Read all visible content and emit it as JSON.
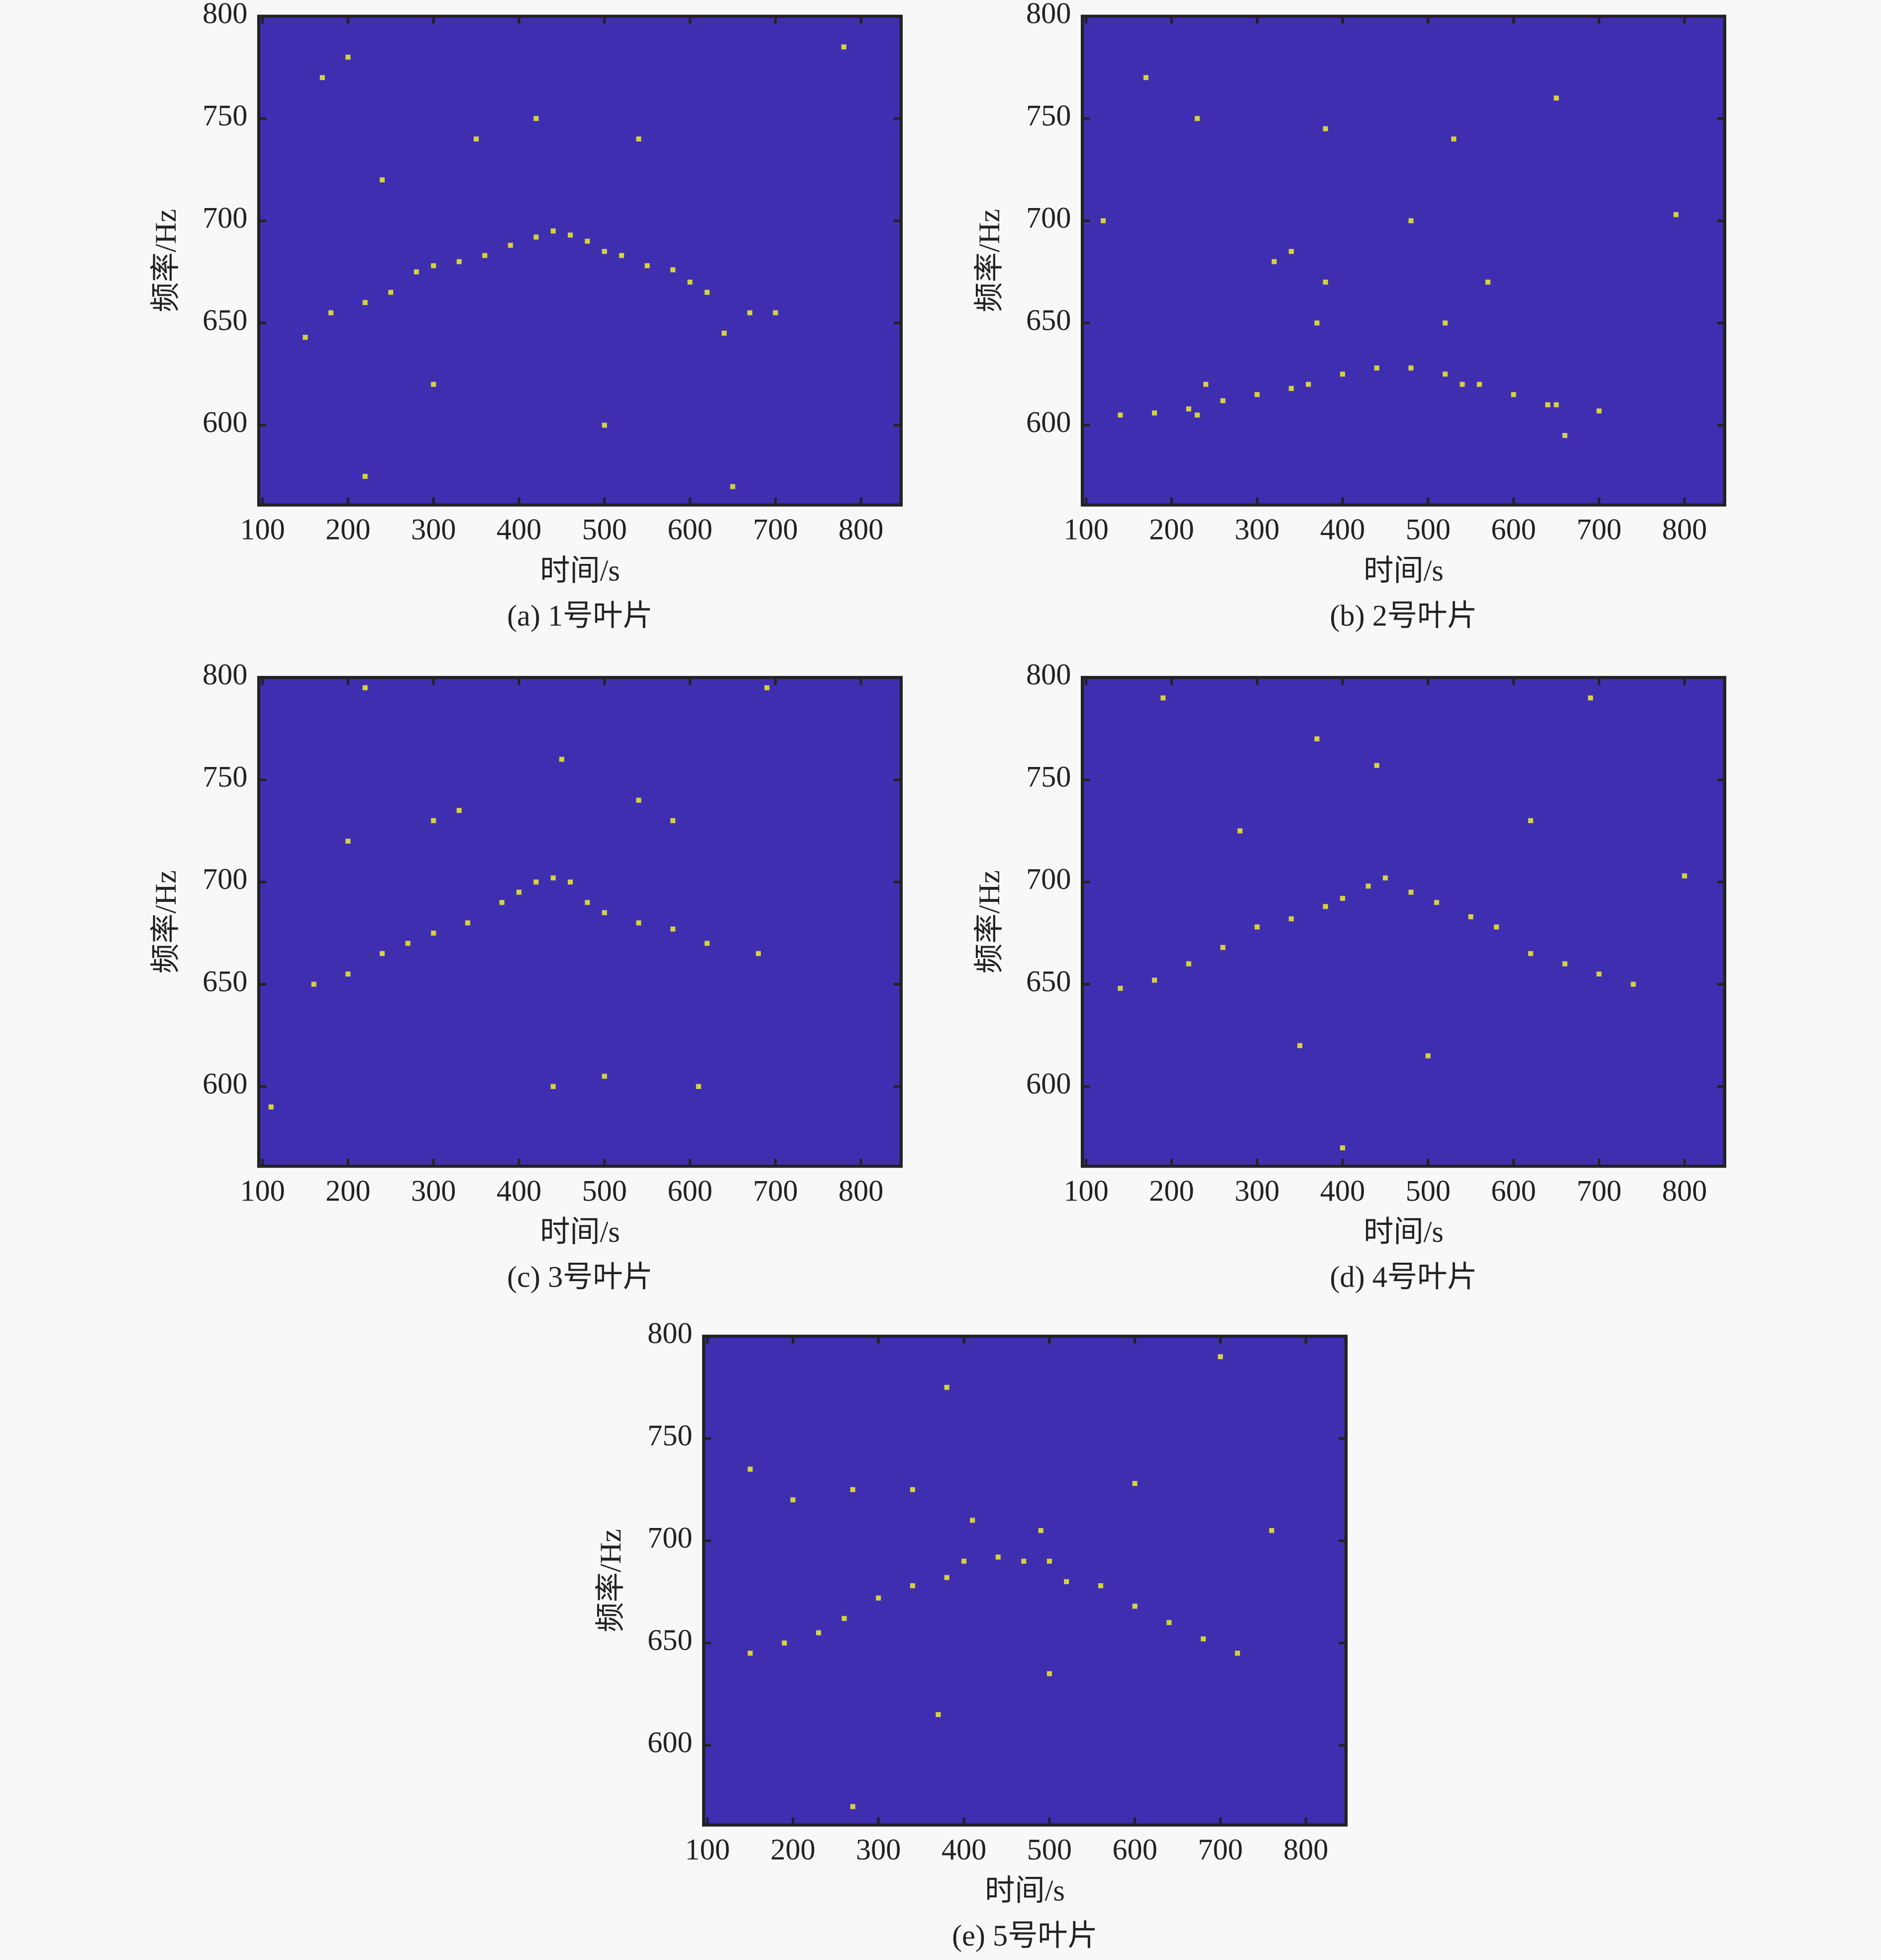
{
  "chart_data": [
    {
      "type": "scatter",
      "caption": "(a) 1号叶片",
      "xlabel": "时间/s",
      "ylabel": "频率/Hz",
      "color": "#d6d23e",
      "background": "#3f2fb0",
      "x": [
        150,
        180,
        220,
        250,
        280,
        300,
        330,
        360,
        390,
        420,
        440,
        460,
        480,
        500,
        520,
        550,
        580,
        600,
        620,
        640,
        670,
        700,
        170,
        200,
        350,
        540,
        420,
        220,
        500,
        780,
        650,
        300,
        240
      ],
      "y": [
        643,
        655,
        660,
        665,
        675,
        678,
        680,
        683,
        688,
        692,
        695,
        693,
        690,
        685,
        683,
        678,
        676,
        670,
        665,
        645,
        655,
        655,
        770,
        780,
        740,
        740,
        750,
        575,
        600,
        785,
        570,
        620,
        720
      ],
      "xlim": [
        95.6,
        847
      ],
      "ylim": [
        561,
        800
      ],
      "xticks": [
        100,
        200,
        300,
        400,
        500,
        600,
        700,
        800
      ],
      "yticks": [
        600,
        650,
        700,
        750,
        800
      ]
    },
    {
      "type": "scatter",
      "caption": "(b) 2号叶片",
      "xlabel": "时间/s",
      "ylabel": "频率/Hz",
      "color": "#d6d23e",
      "background": "#3f2fb0",
      "x": [
        140,
        180,
        220,
        260,
        300,
        340,
        360,
        400,
        440,
        480,
        520,
        560,
        600,
        640,
        700,
        240,
        230,
        370,
        380,
        520,
        540,
        650,
        660,
        170,
        230,
        380,
        320,
        340,
        530,
        480,
        650,
        570,
        120,
        790
      ],
      "y": [
        605,
        606,
        608,
        612,
        615,
        618,
        620,
        625,
        628,
        628,
        625,
        620,
        615,
        610,
        607,
        620,
        605,
        650,
        670,
        650,
        620,
        610,
        595,
        770,
        750,
        745,
        680,
        685,
        740,
        700,
        760,
        670,
        700,
        703
      ],
      "xlim": [
        95.6,
        847
      ],
      "ylim": [
        561,
        800
      ],
      "xticks": [
        100,
        200,
        300,
        400,
        500,
        600,
        700,
        800
      ],
      "yticks": [
        600,
        650,
        700,
        750,
        800
      ]
    },
    {
      "type": "scatter",
      "caption": "(c) 3号叶片",
      "xlabel": "时间/s",
      "ylabel": "频率/Hz",
      "color": "#d6d23e",
      "background": "#3f2fb0",
      "x": [
        160,
        200,
        240,
        270,
        300,
        340,
        380,
        400,
        420,
        440,
        460,
        480,
        500,
        540,
        580,
        620,
        680,
        300,
        330,
        450,
        540,
        580,
        200,
        610,
        440,
        500,
        110,
        690,
        220
      ],
      "y": [
        650,
        655,
        665,
        670,
        675,
        680,
        690,
        695,
        700,
        702,
        700,
        690,
        685,
        680,
        677,
        670,
        665,
        730,
        735,
        760,
        740,
        730,
        720,
        600,
        600,
        605,
        590,
        795,
        795
      ],
      "xlim": [
        95.6,
        847
      ],
      "ylim": [
        561,
        800
      ],
      "xticks": [
        100,
        200,
        300,
        400,
        500,
        600,
        700,
        800
      ],
      "yticks": [
        600,
        650,
        700,
        750,
        800
      ]
    },
    {
      "type": "scatter",
      "caption": "(d) 4号叶片",
      "xlabel": "时间/s",
      "ylabel": "频率/Hz",
      "color": "#d6d23e",
      "background": "#3f2fb0",
      "x": [
        140,
        180,
        220,
        260,
        300,
        340,
        380,
        400,
        430,
        450,
        480,
        510,
        550,
        580,
        620,
        660,
        700,
        740,
        280,
        440,
        370,
        620,
        190,
        690,
        350,
        500,
        800,
        400
      ],
      "y": [
        648,
        652,
        660,
        668,
        678,
        682,
        688,
        692,
        698,
        702,
        695,
        690,
        683,
        678,
        665,
        660,
        655,
        650,
        725,
        757,
        770,
        730,
        790,
        790,
        620,
        615,
        703,
        570
      ],
      "xlim": [
        95.6,
        847
      ],
      "ylim": [
        561,
        800
      ],
      "xticks": [
        100,
        200,
        300,
        400,
        500,
        600,
        700,
        800
      ],
      "yticks": [
        600,
        650,
        700,
        750,
        800
      ]
    },
    {
      "type": "scatter",
      "caption": "(e) 5号叶片",
      "xlabel": "时间/s",
      "ylabel": "频率/Hz",
      "color": "#d6d23e",
      "background": "#3f2fb0",
      "x": [
        150,
        190,
        230,
        260,
        300,
        340,
        380,
        400,
        410,
        440,
        470,
        490,
        500,
        520,
        560,
        600,
        640,
        680,
        720,
        200,
        270,
        340,
        600,
        380,
        700,
        150,
        500,
        270,
        760,
        370
      ],
      "y": [
        645,
        650,
        655,
        662,
        672,
        678,
        682,
        690,
        710,
        692,
        690,
        705,
        690,
        680,
        678,
        668,
        660,
        652,
        645,
        720,
        725,
        725,
        728,
        775,
        790,
        735,
        635,
        570,
        705,
        615
      ],
      "xlim": [
        95.6,
        847
      ],
      "ylim": [
        561,
        800
      ],
      "xticks": [
        100,
        200,
        300,
        400,
        500,
        600,
        700,
        800
      ],
      "yticks": [
        600,
        650,
        700,
        750,
        800
      ]
    }
  ]
}
